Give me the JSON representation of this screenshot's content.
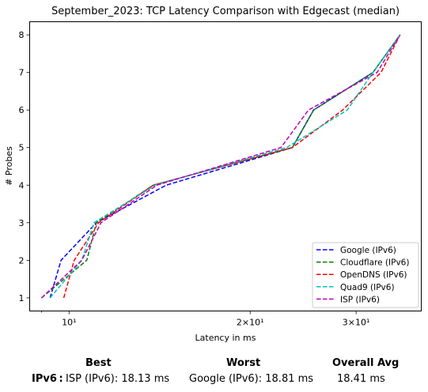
{
  "chart_data": {
    "type": "line",
    "title": "September_2023: TCP Latency Comparison with Edgecast (median)",
    "xlabel": "Latency in ms",
    "ylabel": "# Probes",
    "xscale": "log",
    "xlim": [
      8.6,
      38.5
    ],
    "ylim": [
      0.65,
      8.35
    ],
    "xticks": [
      {
        "value": 10,
        "label": "10¹"
      },
      {
        "value": 20,
        "label": "2×10¹"
      },
      {
        "value": 30,
        "label": "3×10¹"
      }
    ],
    "yticks": [
      1,
      2,
      3,
      4,
      5,
      6,
      7,
      8
    ],
    "legend_position": "lower-right",
    "grid": false,
    "series": [
      {
        "name": "Google (IPv6)",
        "color": "#0000ff",
        "x": [
          9.3,
          9.7,
          11.1,
          14.5,
          23.5,
          25.5,
          32.0,
          35.5
        ],
        "y": [
          1,
          2,
          3,
          4,
          5,
          6,
          7,
          8
        ]
      },
      {
        "name": "Cloudflare (IPv6)",
        "color": "#008000",
        "x": [
          9.0,
          10.7,
          11.1,
          13.8,
          23.5,
          25.5,
          32.0,
          35.5
        ],
        "y": [
          1,
          2,
          3,
          4,
          5,
          6,
          7,
          8
        ]
      },
      {
        "name": "OpenDNS (IPv6)",
        "color": "#ff0000",
        "x": [
          9.8,
          10.2,
          11.2,
          13.8,
          23.5,
          28.5,
          33.0,
          35.5
        ],
        "y": [
          1,
          2,
          3,
          4,
          5,
          6,
          7,
          8
        ]
      },
      {
        "name": "Quad9 (IPv6)",
        "color": "#00bfbf",
        "x": [
          9.3,
          10.5,
          11.0,
          13.9,
          23.0,
          29.0,
          32.0,
          35.5
        ],
        "y": [
          1,
          2,
          3,
          4,
          5,
          6,
          7,
          8
        ]
      },
      {
        "name": "ISP (IPv6)",
        "color": "#bf00bf",
        "x": [
          9.0,
          10.5,
          11.3,
          14.0,
          22.5,
          25.0,
          32.5,
          35.5
        ],
        "y": [
          1,
          2,
          3,
          4,
          5,
          6,
          7,
          8
        ]
      }
    ]
  },
  "summary": {
    "headers": {
      "best": "Best",
      "worst": "Worst",
      "overall": "Overall Avg"
    },
    "row_label": "IPv6 :",
    "best_value": "ISP (IPv6): 18.13 ms",
    "worst_value": "Google (IPv6): 18.81 ms",
    "overall_value": "18.41 ms"
  }
}
